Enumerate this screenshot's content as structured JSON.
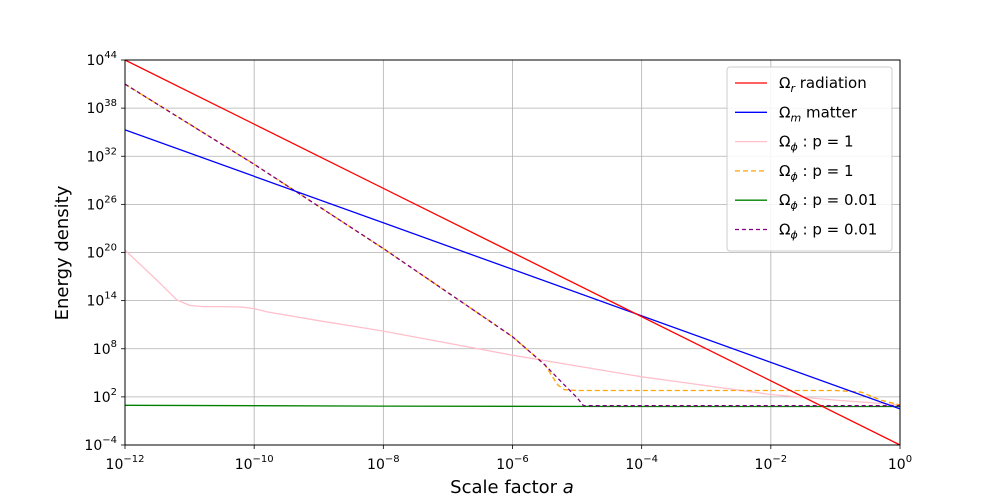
{
  "chart_data": {
    "type": "line",
    "title": "",
    "xlabel": "Scale factor",
    "xlabel_var": "a",
    "ylabel": "Energy density",
    "xscale": "log",
    "yscale": "log",
    "xlim_exp": [
      -12,
      0
    ],
    "ylim_exp": [
      -4,
      44
    ],
    "x_ticks": [
      {
        "base": "10",
        "exp": "−12",
        "e": -12
      },
      {
        "base": "10",
        "exp": "−10",
        "e": -10
      },
      {
        "base": "10",
        "exp": "−8",
        "e": -8
      },
      {
        "base": "10",
        "exp": "−6",
        "e": -6
      },
      {
        "base": "10",
        "exp": "−4",
        "e": -4
      },
      {
        "base": "10",
        "exp": "−2",
        "e": -2
      },
      {
        "base": "10",
        "exp": "0",
        "e": 0
      }
    ],
    "y_ticks": [
      {
        "base": "10",
        "exp": "−4",
        "e": -4
      },
      {
        "base": "10",
        "exp": "2",
        "e": 2
      },
      {
        "base": "10",
        "exp": "8",
        "e": 8
      },
      {
        "base": "10",
        "exp": "14",
        "e": 14
      },
      {
        "base": "10",
        "exp": "20",
        "e": 20
      },
      {
        "base": "10",
        "exp": "26",
        "e": 26
      },
      {
        "base": "10",
        "exp": "32",
        "e": 32
      },
      {
        "base": "10",
        "exp": "38",
        "e": 38
      },
      {
        "base": "10",
        "exp": "44",
        "e": 44
      }
    ],
    "grid": true,
    "legend_position": "top-right",
    "series": [
      {
        "name": "Ω",
        "name_sub": "r",
        "name_rest": " radiation",
        "color": "#ff0000",
        "dash": "none",
        "log10_x": [
          -12,
          0
        ],
        "log10_y": [
          44,
          -4
        ]
      },
      {
        "name": "Ω",
        "name_sub": "m",
        "name_rest": " matter",
        "color": "#0000ff",
        "dash": "none",
        "log10_x": [
          -12,
          0
        ],
        "log10_y": [
          35.3,
          0.5
        ]
      },
      {
        "name": "Ω",
        "name_sub": "ϕ",
        "name_rest": " : p = 1",
        "color": "#ffc0cb",
        "dash": "none",
        "log10_x": [
          -12,
          -11.5,
          -11.2,
          -11.0,
          -10.8,
          -10.5,
          -10.2,
          -10,
          -9.8,
          -9,
          -8,
          -6,
          -4,
          -2,
          -1,
          -0.5,
          0
        ],
        "log10_y": [
          20.3,
          16.5,
          14.1,
          13.4,
          13.25,
          13.25,
          13.2,
          13.0,
          12.6,
          11.5,
          10.2,
          7.2,
          4.5,
          2.3,
          1.6,
          1.3,
          1.0
        ]
      },
      {
        "name": "Ω",
        "name_sub": "ϕ",
        "name_rest": " : p = 1",
        "color": "#ffa500",
        "dash": "5,3",
        "log10_x": [
          -12,
          -10,
          -8,
          -7,
          -6,
          -5.5,
          -5.3,
          -5.2,
          -5,
          -4,
          -2,
          -1,
          -0.6,
          -0.3,
          0
        ],
        "log10_y": [
          41,
          31,
          20.5,
          15,
          9.5,
          6.0,
          3.5,
          2.9,
          2.8,
          2.8,
          2.8,
          2.8,
          2.6,
          1.6,
          1.0
        ]
      },
      {
        "name": "Ω",
        "name_sub": "ϕ",
        "name_rest": " : p = 0.01",
        "color": "#008000",
        "dash": "none",
        "log10_x": [
          -12,
          -10,
          -8,
          -6,
          -4,
          -2,
          0
        ],
        "log10_y": [
          0.95,
          0.9,
          0.85,
          0.82,
          0.8,
          0.8,
          0.8
        ]
      },
      {
        "name": "Ω",
        "name_sub": "ϕ",
        "name_rest": " : p = 0.01",
        "color": "#800080",
        "dash": "4,3",
        "log10_x": [
          -12,
          -10,
          -8,
          -7,
          -6,
          -5.5,
          -5.2,
          -5,
          -4.9,
          -4,
          -2,
          0
        ],
        "log10_y": [
          41,
          31,
          20.5,
          15,
          9.5,
          6.0,
          3.5,
          1.9,
          0.9,
          0.9,
          0.9,
          0.9
        ]
      }
    ]
  }
}
